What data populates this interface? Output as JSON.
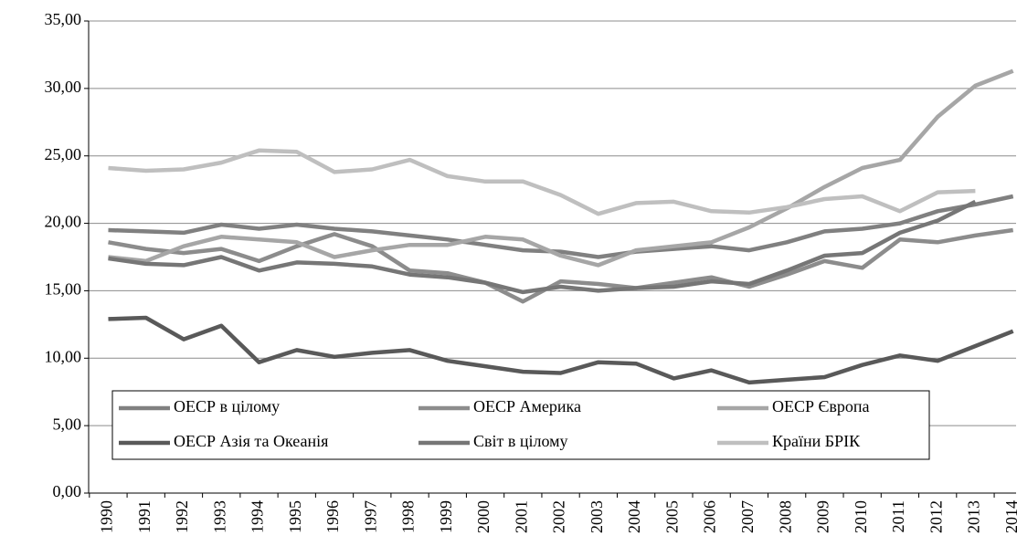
{
  "chart_data": {
    "type": "line",
    "categories": [
      "1990",
      "1991",
      "1992",
      "1993",
      "1994",
      "1995",
      "1996",
      "1997",
      "1998",
      "1999",
      "2000",
      "2001",
      "2002",
      "2003",
      "2004",
      "2005",
      "2006",
      "2007",
      "2008",
      "2009",
      "2010",
      "2011",
      "2012",
      "2013",
      "2014"
    ],
    "series": [
      {
        "name": "ОЕСР в цілому",
        "color": "#808080",
        "values": [
          19.5,
          19.4,
          19.3,
          19.9,
          19.6,
          19.9,
          19.6,
          19.4,
          19.1,
          18.8,
          18.4,
          18.0,
          17.9,
          17.5,
          17.9,
          18.1,
          18.3,
          18.0,
          18.6,
          19.4,
          19.6,
          20.0,
          20.9,
          21.4,
          22.0
        ]
      },
      {
        "name": "ОЕСР Америка",
        "color": "#8c8c8c",
        "values": [
          18.6,
          18.1,
          17.8,
          18.1,
          17.2,
          18.3,
          19.2,
          18.3,
          16.5,
          16.3,
          15.6,
          14.2,
          15.7,
          15.5,
          15.2,
          15.6,
          16.0,
          15.3,
          16.2,
          17.2,
          16.7,
          18.8,
          18.6,
          19.1,
          19.5
        ]
      },
      {
        "name": "ОЕСР Європа",
        "color": "#a6a6a6",
        "values": [
          17.5,
          17.2,
          18.3,
          19.0,
          18.8,
          18.6,
          17.5,
          18.0,
          18.4,
          18.4,
          19.0,
          18.8,
          17.6,
          16.9,
          18.0,
          18.3,
          18.6,
          19.7,
          21.1,
          22.7,
          24.1,
          24.7,
          27.9,
          30.2,
          31.3
        ]
      },
      {
        "name": "ОЕСР Азія та Океанія",
        "color": "#595959",
        "values": [
          12.9,
          13.0,
          11.4,
          12.4,
          9.7,
          10.6,
          10.1,
          10.4,
          10.6,
          9.8,
          9.4,
          9.0,
          8.9,
          9.7,
          9.6,
          8.5,
          9.1,
          8.2,
          8.4,
          8.6,
          9.5,
          10.2,
          9.8,
          10.9,
          12.0
        ]
      },
      {
        "name": "Світ в цілому",
        "color": "#767676",
        "values": [
          17.4,
          17.0,
          16.9,
          17.5,
          16.5,
          17.1,
          17.0,
          16.8,
          16.2,
          16.0,
          15.6,
          14.9,
          15.3,
          15.0,
          15.2,
          15.3,
          15.7,
          15.5,
          16.5,
          17.6,
          17.8,
          19.3,
          20.2,
          21.6,
          null
        ]
      },
      {
        "name": "Країни БРІК",
        "color": "#bfbfbf",
        "values": [
          24.1,
          23.9,
          24.0,
          24.5,
          25.4,
          25.3,
          23.8,
          24.0,
          24.7,
          23.5,
          23.1,
          23.1,
          22.1,
          20.7,
          21.5,
          21.6,
          20.9,
          20.8,
          21.2,
          21.8,
          22.0,
          20.9,
          22.3,
          22.4,
          null
        ]
      }
    ],
    "ylim": [
      0,
      35
    ],
    "yticks": [
      {
        "value": 0,
        "label": "0,00"
      },
      {
        "value": 5,
        "label": "5,00"
      },
      {
        "value": 10,
        "label": "10,00"
      },
      {
        "value": 15,
        "label": "15,00"
      },
      {
        "value": 20,
        "label": "20,00"
      },
      {
        "value": 25,
        "label": "25,00"
      },
      {
        "value": 30,
        "label": "30,00"
      },
      {
        "value": 35,
        "label": "35,00"
      }
    ],
    "grid": true
  }
}
